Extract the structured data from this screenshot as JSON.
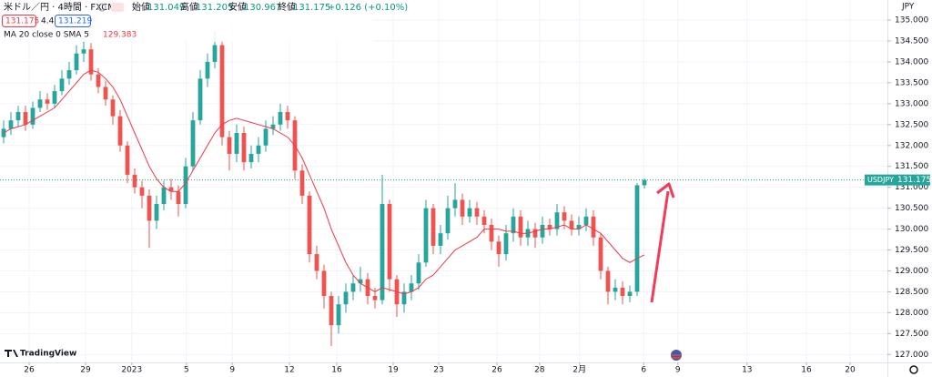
{
  "header": {
    "title": "米ドル／円 · 4時間 · FXCM",
    "open_label": "始値",
    "high_label": "高値",
    "low_label": "安値",
    "close_label": "終値",
    "change": "+0.126 (+0.10%)",
    "spread": "4.4",
    "ask": 131.219,
    "currency": "JPY",
    "brand": "TradingView"
  },
  "chart_data": {
    "type": "candlestick",
    "symbol": "USDJPY",
    "up_color": "#26a69a",
    "down_color": "#ef5350",
    "ohlc": [
      [
        132.2,
        132.6,
        132.05,
        132.4
      ],
      [
        132.4,
        132.8,
        132.25,
        132.6
      ],
      [
        132.6,
        132.95,
        132.45,
        132.8
      ],
      [
        132.8,
        132.95,
        132.35,
        132.5
      ],
      [
        132.5,
        133.05,
        132.4,
        132.9
      ],
      [
        132.9,
        133.3,
        132.8,
        133.1
      ],
      [
        133.1,
        133.25,
        132.85,
        133.0
      ],
      [
        133.0,
        133.45,
        132.9,
        133.3
      ],
      [
        133.3,
        133.8,
        133.2,
        133.6
      ],
      [
        133.6,
        134.0,
        133.45,
        133.8
      ],
      [
        133.8,
        134.4,
        133.7,
        134.2
      ],
      [
        134.2,
        134.55,
        134.0,
        134.3
      ],
      [
        134.3,
        134.45,
        133.55,
        133.7
      ],
      [
        133.7,
        133.85,
        133.25,
        133.4
      ],
      [
        133.4,
        133.55,
        132.95,
        133.1
      ],
      [
        133.1,
        133.2,
        132.5,
        132.7
      ],
      [
        132.7,
        132.85,
        131.85,
        132.0
      ],
      [
        132.0,
        132.1,
        131.1,
        131.3
      ],
      [
        131.3,
        131.45,
        130.85,
        131.0
      ],
      [
        131.0,
        131.15,
        130.5,
        130.8
      ],
      [
        130.8,
        130.95,
        129.55,
        130.2
      ],
      [
        130.2,
        130.8,
        130.0,
        130.6
      ],
      [
        130.6,
        131.15,
        130.45,
        131.0
      ],
      [
        131.0,
        131.2,
        130.7,
        130.9
      ],
      [
        130.9,
        131.05,
        130.3,
        130.6
      ],
      [
        130.6,
        131.7,
        130.5,
        131.5
      ],
      [
        131.5,
        132.8,
        131.4,
        132.6
      ],
      [
        132.6,
        133.8,
        132.5,
        133.6
      ],
      [
        133.6,
        134.2,
        133.4,
        134.0
      ],
      [
        134.0,
        134.75,
        133.85,
        134.4
      ],
      [
        134.4,
        134.5,
        132.0,
        132.2
      ],
      [
        132.2,
        132.35,
        131.4,
        131.8
      ],
      [
        131.8,
        132.5,
        131.6,
        132.3
      ],
      [
        132.3,
        132.45,
        131.4,
        131.6
      ],
      [
        131.6,
        132.0,
        131.45,
        131.8
      ],
      [
        131.8,
        132.2,
        131.6,
        132.0
      ],
      [
        132.0,
        132.6,
        131.85,
        132.4
      ],
      [
        132.4,
        132.7,
        132.25,
        132.5
      ],
      [
        132.5,
        133.0,
        132.35,
        132.8
      ],
      [
        132.8,
        132.95,
        132.4,
        132.6
      ],
      [
        132.6,
        132.7,
        131.2,
        131.4
      ],
      [
        131.4,
        131.55,
        130.6,
        130.8
      ],
      [
        130.8,
        130.9,
        129.2,
        129.4
      ],
      [
        129.4,
        129.6,
        128.8,
        129.0
      ],
      [
        129.0,
        129.15,
        128.1,
        128.4
      ],
      [
        128.4,
        128.5,
        127.2,
        127.7
      ],
      [
        127.7,
        128.4,
        127.5,
        128.2
      ],
      [
        128.2,
        128.7,
        128.0,
        128.5
      ],
      [
        128.5,
        128.9,
        128.3,
        128.7
      ],
      [
        128.7,
        129.1,
        128.5,
        128.8
      ],
      [
        128.8,
        128.95,
        128.2,
        128.4
      ],
      [
        128.4,
        128.6,
        128.1,
        128.3
      ],
      [
        128.3,
        131.3,
        128.2,
        130.6
      ],
      [
        130.6,
        130.7,
        128.5,
        128.8
      ],
      [
        128.8,
        128.9,
        127.9,
        128.2
      ],
      [
        128.2,
        128.7,
        128.0,
        128.5
      ],
      [
        128.5,
        128.9,
        128.3,
        128.7
      ],
      [
        128.7,
        129.4,
        128.55,
        129.2
      ],
      [
        129.2,
        130.7,
        129.1,
        130.5
      ],
      [
        130.5,
        130.6,
        129.4,
        129.6
      ],
      [
        129.6,
        130.1,
        129.4,
        129.9
      ],
      [
        129.9,
        130.8,
        129.75,
        130.5
      ],
      [
        130.5,
        131.1,
        130.3,
        130.7
      ],
      [
        130.7,
        130.85,
        130.1,
        130.3
      ],
      [
        130.3,
        130.7,
        130.15,
        130.5
      ],
      [
        130.5,
        130.65,
        130.1,
        130.3
      ],
      [
        130.3,
        130.45,
        129.9,
        130.1
      ],
      [
        130.1,
        130.25,
        129.5,
        129.7
      ],
      [
        129.7,
        129.85,
        129.1,
        129.4
      ],
      [
        129.4,
        130.1,
        129.25,
        129.9
      ],
      [
        129.9,
        130.5,
        129.7,
        130.3
      ],
      [
        130.3,
        130.45,
        129.6,
        129.8
      ],
      [
        129.8,
        130.2,
        129.6,
        130.0
      ],
      [
        130.0,
        130.15,
        129.55,
        129.8
      ],
      [
        129.8,
        130.3,
        129.65,
        130.1
      ],
      [
        130.1,
        130.25,
        129.85,
        130.0
      ],
      [
        130.0,
        130.6,
        129.85,
        130.4
      ],
      [
        130.4,
        130.55,
        130.0,
        130.2
      ],
      [
        130.2,
        130.35,
        129.85,
        130.0
      ],
      [
        130.0,
        130.3,
        129.85,
        130.1
      ],
      [
        130.1,
        130.5,
        129.95,
        130.3
      ],
      [
        130.3,
        130.45,
        129.6,
        129.8
      ],
      [
        129.8,
        129.9,
        128.8,
        129.0
      ],
      [
        129.0,
        129.1,
        128.2,
        128.5
      ],
      [
        128.5,
        128.8,
        128.3,
        128.6
      ],
      [
        128.6,
        128.75,
        128.2,
        128.4
      ],
      [
        128.4,
        128.65,
        128.25,
        128.5
      ],
      [
        128.5,
        131.1,
        128.4,
        131.049
      ],
      [
        131.049,
        131.205,
        130.967,
        131.175
      ]
    ],
    "ma": {
      "name": "MA 20 close 0 SMA 5",
      "color": "#f23645",
      "values": [
        132.3,
        132.4,
        132.45,
        132.5,
        132.6,
        132.7,
        132.8,
        132.9,
        133.1,
        133.3,
        133.5,
        133.7,
        133.8,
        133.75,
        133.6,
        133.4,
        133.1,
        132.7,
        132.3,
        131.9,
        131.5,
        131.2,
        131.0,
        130.9,
        130.9,
        131.1,
        131.4,
        131.7,
        132.0,
        132.3,
        132.5,
        132.6,
        132.65,
        132.6,
        132.55,
        132.5,
        132.45,
        132.4,
        132.3,
        132.2,
        132.0,
        131.7,
        131.3,
        130.9,
        130.5,
        130.0,
        129.6,
        129.2,
        128.9,
        128.7,
        128.6,
        128.5,
        128.6,
        128.55,
        128.5,
        128.45,
        128.5,
        128.6,
        128.8,
        128.9,
        129.1,
        129.3,
        129.5,
        129.6,
        129.7,
        129.8,
        130.0,
        130.0,
        130.0,
        129.95,
        129.95,
        129.9,
        129.9,
        129.95,
        130.0,
        130.0,
        130.05,
        130.1,
        130.0,
        130.0,
        130.1,
        130.0,
        129.9,
        129.7,
        129.5,
        129.3,
        129.2,
        129.3,
        129.383
      ]
    },
    "xlim": [
      -0.5,
      121.375
    ],
    "xticks": [
      {
        "value": 3.5,
        "label": "26"
      },
      {
        "value": 11.25,
        "label": "29"
      },
      {
        "value": 17.6,
        "label": "2023"
      },
      {
        "value": 25.1,
        "label": "5"
      },
      {
        "value": 31.4,
        "label": "9"
      },
      {
        "value": 39.25,
        "label": "12"
      },
      {
        "value": 45.75,
        "label": "16"
      },
      {
        "value": 53.5,
        "label": "19"
      },
      {
        "value": 59.75,
        "label": "23"
      },
      {
        "value": 67.75,
        "label": "26"
      },
      {
        "value": 73.6,
        "label": "28"
      },
      {
        "value": 79.1,
        "label": "2月"
      },
      {
        "value": 87.9,
        "label": "6"
      },
      {
        "value": 92.6,
        "label": "9"
      },
      {
        "value": 102.1,
        "label": "13"
      },
      {
        "value": 110.25,
        "label": "16"
      },
      {
        "value": 116.25,
        "label": "20"
      }
    ],
    "ylim": [
      126.81,
      135.48
    ],
    "yticks": [
      {
        "value": 127,
        "label": "127.000"
      },
      {
        "value": 127.5,
        "label": "127.500"
      },
      {
        "value": 128,
        "label": "128.000"
      },
      {
        "value": 128.5,
        "label": "128.500"
      },
      {
        "value": 129,
        "label": "129.000"
      },
      {
        "value": 129.5,
        "label": "129.500"
      },
      {
        "value": 130,
        "label": "130.000"
      },
      {
        "value": 130.5,
        "label": "130.500"
      },
      {
        "value": 131,
        "label": "131.000"
      },
      {
        "value": 131.5,
        "label": "131.500"
      },
      {
        "value": 132,
        "label": "132.000"
      },
      {
        "value": 132.5,
        "label": "132.500"
      },
      {
        "value": 133,
        "label": "133.000"
      },
      {
        "value": 133.5,
        "label": "133.500"
      },
      {
        "value": 134,
        "label": "134.000"
      },
      {
        "value": 134.5,
        "label": "134.500"
      },
      {
        "value": 135,
        "label": "135.000"
      }
    ],
    "grid": true
  }
}
